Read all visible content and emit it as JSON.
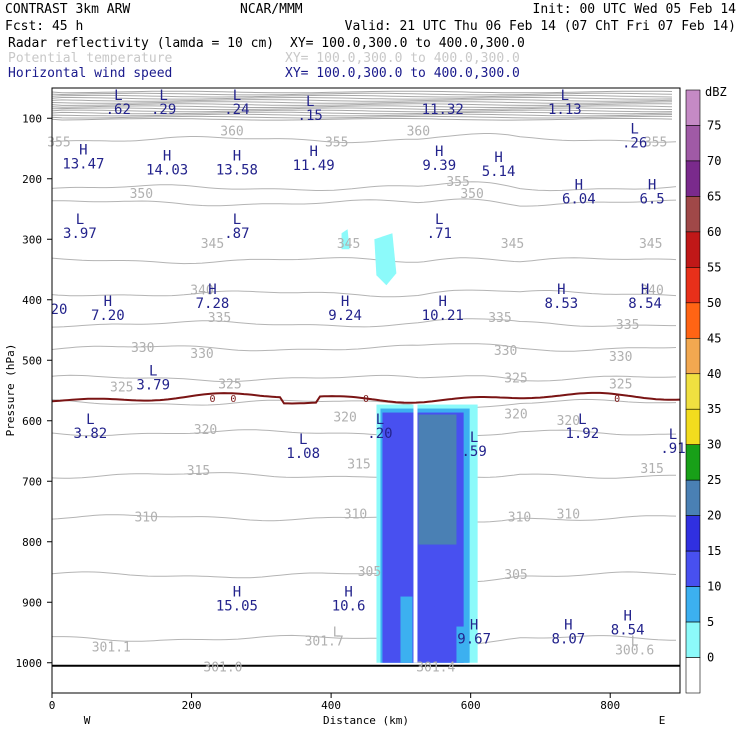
{
  "header": {
    "model": "CONTRAST  3km ARW",
    "center": "NCAR/MMM",
    "init": "Init: 00 UTC Wed 05 Feb 14",
    "fcst": "Fcst:   45 h",
    "valid": "Valid: 21 UTC Thu 06 Feb 14 (07 ChT Fri 07 Feb 14)",
    "fields": [
      {
        "label": "Radar reflectivity (lamda = 10 cm)",
        "xy": "XY= 100.0,300.0 to 400.0,300.0",
        "color": "#000000"
      },
      {
        "label": "Potential temperature",
        "xy": "XY= 100.0,300.0 to 400.0,300.0",
        "color": "#c8c8c8"
      },
      {
        "label": "Horizontal wind speed",
        "xy": "XY= 100.0,300.0 to 400.0,300.0",
        "color": "#1a1a8c"
      }
    ]
  },
  "chart_data": {
    "type": "cross-section",
    "xlabel": "Distance (km)",
    "ylabel": "Pressure (hPa)",
    "xlim": [
      0,
      900
    ],
    "ylim": [
      1050,
      50
    ],
    "x_ticks": [
      0,
      200,
      400,
      600,
      800
    ],
    "y_ticks": [
      100,
      200,
      300,
      400,
      500,
      600,
      700,
      800,
      900,
      1000
    ],
    "x_ends": {
      "left": "W",
      "right": "E"
    },
    "theta_labels": [
      {
        "text": "355",
        "x": 10,
        "p": 140
      },
      {
        "text": "360",
        "x": 258,
        "p": 122
      },
      {
        "text": "355",
        "x": 408,
        "p": 140
      },
      {
        "text": "360",
        "x": 525,
        "p": 122
      },
      {
        "text": "355",
        "x": 865,
        "p": 140
      },
      {
        "text": "350",
        "x": 128,
        "p": 225
      },
      {
        "text": "355",
        "x": 582,
        "p": 205
      },
      {
        "text": "350",
        "x": 602,
        "p": 225
      },
      {
        "text": "345",
        "x": 230,
        "p": 308
      },
      {
        "text": "345",
        "x": 425,
        "p": 308
      },
      {
        "text": "345",
        "x": 660,
        "p": 308
      },
      {
        "text": "345",
        "x": 858,
        "p": 308
      },
      {
        "text": "340",
        "x": 215,
        "p": 385
      },
      {
        "text": "340",
        "x": 860,
        "p": 385
      },
      {
        "text": "335",
        "x": 240,
        "p": 430
      },
      {
        "text": "335",
        "x": 642,
        "p": 430
      },
      {
        "text": "335",
        "x": 825,
        "p": 442
      },
      {
        "text": "330",
        "x": 130,
        "p": 480
      },
      {
        "text": "330",
        "x": 215,
        "p": 490
      },
      {
        "text": "330",
        "x": 650,
        "p": 485
      },
      {
        "text": "330",
        "x": 815,
        "p": 495
      },
      {
        "text": "325",
        "x": 100,
        "p": 545
      },
      {
        "text": "325",
        "x": 255,
        "p": 540
      },
      {
        "text": "325",
        "x": 665,
        "p": 530
      },
      {
        "text": "325",
        "x": 815,
        "p": 540
      },
      {
        "text": "320",
        "x": 220,
        "p": 615
      },
      {
        "text": "320",
        "x": 420,
        "p": 595
      },
      {
        "text": "320",
        "x": 665,
        "p": 590
      },
      {
        "text": "320",
        "x": 740,
        "p": 600
      },
      {
        "text": "315",
        "x": 210,
        "p": 683
      },
      {
        "text": "315",
        "x": 440,
        "p": 672
      },
      {
        "text": "315",
        "x": 860,
        "p": 680
      },
      {
        "text": "310",
        "x": 135,
        "p": 760
      },
      {
        "text": "310",
        "x": 435,
        "p": 755
      },
      {
        "text": "310",
        "x": 670,
        "p": 760
      },
      {
        "text": "310",
        "x": 740,
        "p": 755
      },
      {
        "text": "305",
        "x": 455,
        "p": 850
      },
      {
        "text": "305",
        "x": 665,
        "p": 855
      },
      {
        "text": "L",
        "x": 408,
        "p": 950
      },
      {
        "text": "301.1",
        "x": 85,
        "p": 975
      },
      {
        "text": "301.7",
        "x": 390,
        "p": 965
      },
      {
        "text": "L",
        "x": 835,
        "p": 965
      },
      {
        "text": "300.6",
        "x": 835,
        "p": 980
      },
      {
        "text": "301.0",
        "x": 245,
        "p": 1008
      },
      {
        "text": "301.4",
        "x": 550,
        "p": 1008
      }
    ],
    "freezing_label": "0",
    "freezing_level_p": 562,
    "wind_labels": [
      {
        "type": "L",
        "value": ".62",
        "x": 95,
        "p": 80
      },
      {
        "type": "L",
        "value": ".29",
        "x": 160,
        "p": 80
      },
      {
        "type": "L",
        "value": ".24",
        "x": 265,
        "p": 80
      },
      {
        "type": "L",
        "value": ".15",
        "x": 370,
        "p": 90
      },
      {
        "type": "",
        "value": "11.32",
        "x": 560,
        "p": 80
      },
      {
        "type": "L",
        "value": "1.13",
        "x": 735,
        "p": 80
      },
      {
        "type": "L",
        "value": ".26",
        "x": 835,
        "p": 135
      },
      {
        "type": "H",
        "value": "13.47",
        "x": 45,
        "p": 170
      },
      {
        "type": "H",
        "value": "14.03",
        "x": 165,
        "p": 180
      },
      {
        "type": "H",
        "value": "13.58",
        "x": 265,
        "p": 180
      },
      {
        "type": "H",
        "value": "11.49",
        "x": 375,
        "p": 172
      },
      {
        "type": "H",
        "value": "9.39",
        "x": 555,
        "p": 172
      },
      {
        "type": "H",
        "value": "5.14",
        "x": 640,
        "p": 182
      },
      {
        "type": "H",
        "value": "6.04",
        "x": 755,
        "p": 228
      },
      {
        "type": "H",
        "value": "6.5",
        "x": 860,
        "p": 228
      },
      {
        "type": "L",
        "value": "3.97",
        "x": 40,
        "p": 285
      },
      {
        "type": "L",
        "value": ".87",
        "x": 265,
        "p": 285
      },
      {
        "type": "L",
        "value": ".71",
        "x": 555,
        "p": 285
      },
      {
        "type": "",
        "value": "20",
        "x": 10,
        "p": 410
      },
      {
        "type": "H",
        "value": "7.28",
        "x": 230,
        "p": 400
      },
      {
        "type": "H",
        "value": "7.20",
        "x": 80,
        "p": 420
      },
      {
        "type": "H",
        "value": "9.24",
        "x": 420,
        "p": 420
      },
      {
        "type": "H",
        "value": "10.21",
        "x": 560,
        "p": 420
      },
      {
        "type": "H",
        "value": "8.53",
        "x": 730,
        "p": 400
      },
      {
        "type": "H",
        "value": "8.54",
        "x": 850,
        "p": 400
      },
      {
        "type": "L",
        "value": "3.79",
        "x": 145,
        "p": 535
      },
      {
        "type": "L",
        "value": "3.82",
        "x": 55,
        "p": 615
      },
      {
        "type": "L",
        "value": ".20",
        "x": 470,
        "p": 615
      },
      {
        "type": "L",
        "value": "1.92",
        "x": 760,
        "p": 615
      },
      {
        "type": "L",
        "value": "1.08",
        "x": 360,
        "p": 648
      },
      {
        "type": "L",
        "value": ".59",
        "x": 605,
        "p": 645
      },
      {
        "type": "L",
        "value": ".91",
        "x": 890,
        "p": 640
      },
      {
        "type": "H",
        "value": "15.05",
        "x": 265,
        "p": 900
      },
      {
        "type": "H",
        "value": "10.6",
        "x": 425,
        "p": 900
      },
      {
        "type": "H",
        "value": "9.67",
        "x": 605,
        "p": 955
      },
      {
        "type": "H",
        "value": "8.07",
        "x": 740,
        "p": 955
      },
      {
        "type": "H",
        "value": "8.54",
        "x": 825,
        "p": 940
      }
    ],
    "legend": {
      "unit": "dBZ",
      "levels": [
        75,
        70,
        65,
        60,
        55,
        50,
        45,
        40,
        35,
        30,
        25,
        20,
        15,
        10,
        5,
        0
      ],
      "colors": [
        "#c58ac5",
        "#a05aa6",
        "#7a2a8c",
        "#a04848",
        "#c01818",
        "#e8301a",
        "#ff6414",
        "#f2a850",
        "#f0e040",
        "#f2dc1e",
        "#18a018",
        "#4a80b4",
        "#3030e0",
        "#4850f0",
        "#3cb0f0",
        "#8cfafa",
        "#ffffff"
      ]
    },
    "reflectivity_block": {
      "x_start": 465,
      "x_end": 610,
      "p_top": 560,
      "p_bottom": 1000
    }
  }
}
